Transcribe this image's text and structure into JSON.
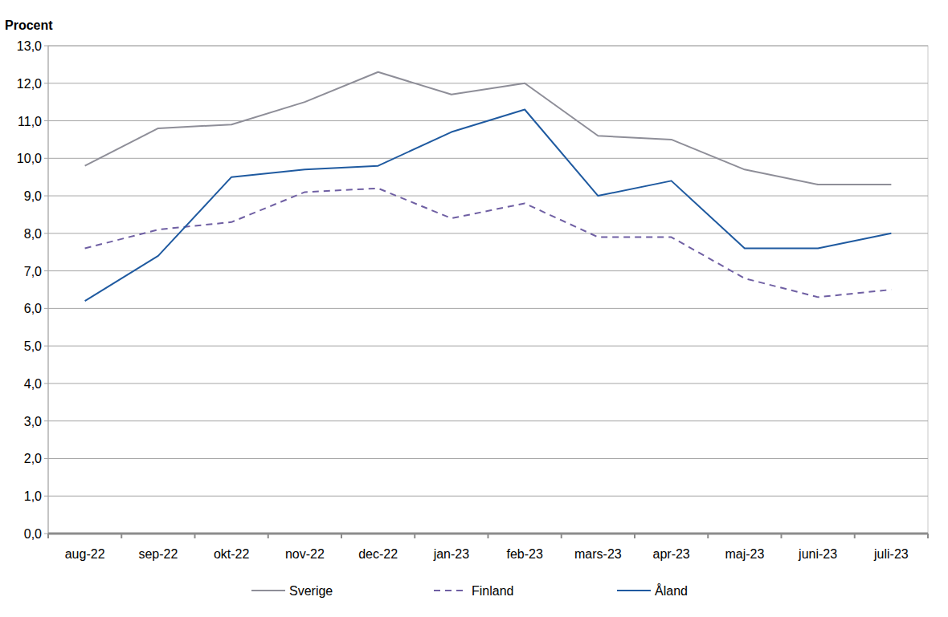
{
  "chart_data": {
    "type": "line",
    "y_label": "Procent",
    "categories": [
      "aug-22",
      "sep-22",
      "okt-22",
      "nov-22",
      "dec-22",
      "jan-23",
      "feb-23",
      "mars-23",
      "apr-23",
      "maj-23",
      "juni-23",
      "juli-23"
    ],
    "series": [
      {
        "name": "Sverige",
        "color": "#8e8e98",
        "line_style": "solid",
        "values": [
          9.8,
          10.8,
          10.9,
          11.5,
          12.3,
          11.7,
          12.0,
          10.6,
          10.5,
          9.7,
          9.3,
          9.3
        ]
      },
      {
        "name": "Finland",
        "color": "#6f5fa3",
        "line_style": "dashed",
        "values": [
          7.6,
          8.1,
          8.3,
          9.1,
          9.2,
          8.4,
          8.8,
          7.9,
          7.9,
          6.8,
          6.3,
          6.5
        ]
      },
      {
        "name": "Åland",
        "color": "#1f5aa0",
        "line_style": "solid",
        "values": [
          6.2,
          7.4,
          9.5,
          9.7,
          9.8,
          10.7,
          11.3,
          9.0,
          9.4,
          7.6,
          7.6,
          8.0
        ]
      }
    ],
    "ylim": [
      0,
      13
    ],
    "yticks": [
      {
        "value": 0,
        "label": "0,0"
      },
      {
        "value": 1,
        "label": "1,0"
      },
      {
        "value": 2,
        "label": "2,0"
      },
      {
        "value": 3,
        "label": "3,0"
      },
      {
        "value": 4,
        "label": "4,0"
      },
      {
        "value": 5,
        "label": "5,0"
      },
      {
        "value": 6,
        "label": "6,0"
      },
      {
        "value": 7,
        "label": "7,0"
      },
      {
        "value": 8,
        "label": "8,0"
      },
      {
        "value": 9,
        "label": "9,0"
      },
      {
        "value": 10,
        "label": "10,0"
      },
      {
        "value": 11,
        "label": "11,0"
      },
      {
        "value": 12,
        "label": "12,0"
      },
      {
        "value": 13,
        "label": "13,0"
      }
    ],
    "grid": true,
    "legend": "bottom"
  }
}
